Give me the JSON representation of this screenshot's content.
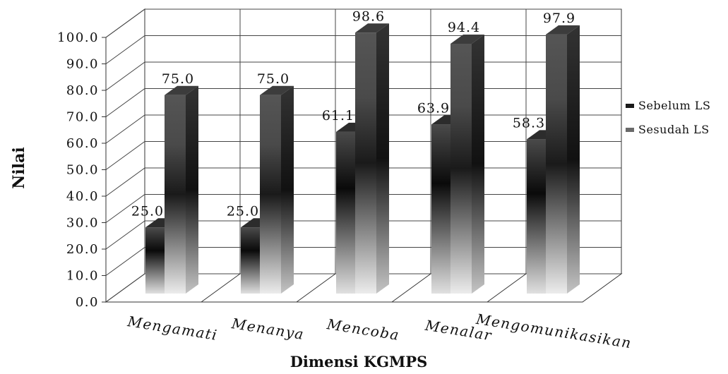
{
  "chart_data": {
    "type": "bar",
    "title": "",
    "xlabel": "Dimensi KGMPS",
    "ylabel": "Nilai",
    "categories": [
      "Mengamati",
      "Menanya",
      "Mencoba",
      "Menalar",
      "Mengomunikasikan"
    ],
    "series": [
      {
        "name": "Sebelum LS",
        "values": [
          25.0,
          25.0,
          61.1,
          63.9,
          58.3
        ],
        "labels": [
          "25.0",
          "25.0",
          "61.1",
          "63.9",
          "58.3"
        ],
        "color": "#1a1a1a"
      },
      {
        "name": "Sesudah LS",
        "values": [
          75.0,
          75.0,
          98.6,
          94.4,
          97.9
        ],
        "labels": [
          "75.0",
          "75.0",
          "98.6",
          "94.4",
          "97.9"
        ],
        "color": "#6a6a6a"
      }
    ],
    "ylim": [
      0,
      100
    ],
    "yticks": [
      "0.0",
      "10.0",
      "20.0",
      "30.0",
      "40.0",
      "50.0",
      "60.0",
      "70.0",
      "80.0",
      "90.0",
      "100.0"
    ],
    "grid": true,
    "legend": "right",
    "style": "3d-column"
  }
}
